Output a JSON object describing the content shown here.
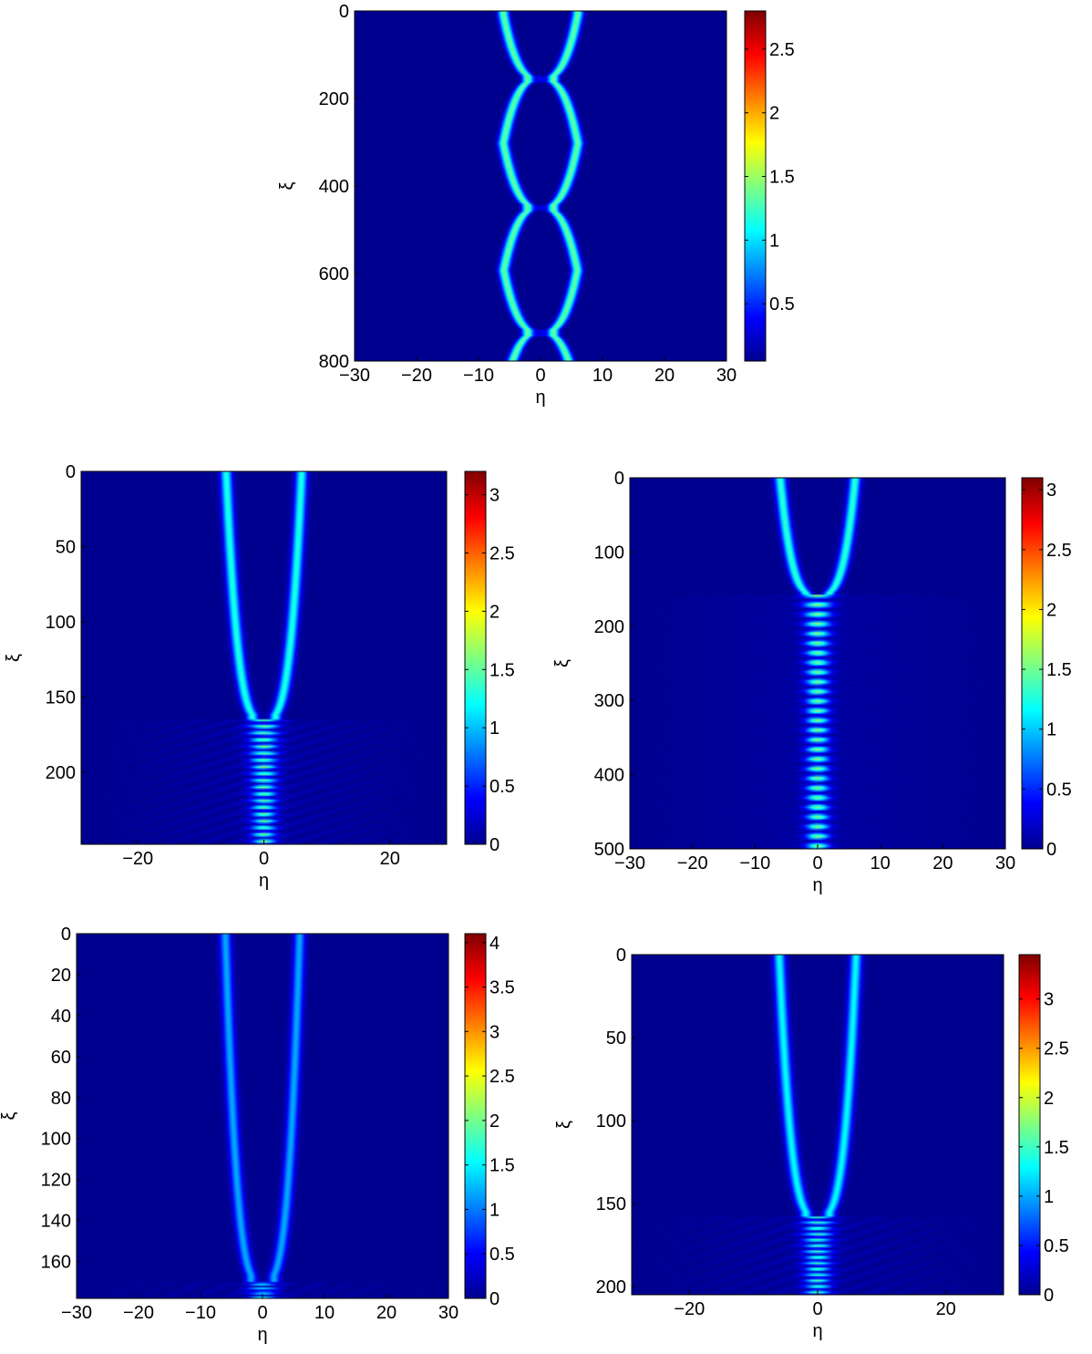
{
  "colormap": [
    "#00008f",
    "#0000ff",
    "#0080ff",
    "#00ffff",
    "#80ff80",
    "#ffff00",
    "#ff8000",
    "#ff0000",
    "#800000"
  ],
  "chart_data": [
    {
      "type": "heatmap",
      "xlabel": "η",
      "ylabel": "ξ",
      "xlim": [
        -30,
        30
      ],
      "ylim": [
        0,
        800
      ],
      "xticks": [
        "−30",
        "−20",
        "−10",
        "0",
        "10",
        "20",
        "30"
      ],
      "xtick_values": [
        -30,
        -20,
        -10,
        0,
        10,
        20,
        30
      ],
      "yticks": [
        "0",
        "200",
        "400",
        "600",
        "800"
      ],
      "ytick_values": [
        0,
        200,
        400,
        600,
        800
      ],
      "colorbar": {
        "range": [
          0.05,
          2.8
        ],
        "ticks": [
          "0.5",
          "1",
          "1.5",
          "2",
          "2.5"
        ],
        "tick_values": [
          0.5,
          1,
          1.5,
          2,
          2.5
        ]
      },
      "pattern": "breathing",
      "peak_amplitude": 1.35,
      "max_separation": 6,
      "beam_width": 0.9,
      "collision_points": [
        155,
        450,
        735
      ]
    },
    {
      "type": "heatmap",
      "xlabel": "η",
      "ylabel": "ξ",
      "xlim": [
        -29,
        29
      ],
      "ylim": [
        0,
        248
      ],
      "xticks": [
        "−20",
        "0",
        "20"
      ],
      "xtick_values": [
        -20,
        0,
        20
      ],
      "yticks": [
        "0",
        "50",
        "100",
        "150",
        "200"
      ],
      "ytick_values": [
        0,
        50,
        100,
        150,
        200
      ],
      "colorbar": {
        "range": [
          0,
          3.2
        ],
        "ticks": [
          "0",
          "0.5",
          "1",
          "1.5",
          "2",
          "2.5",
          "3"
        ],
        "tick_values": [
          0,
          0.5,
          1,
          1.5,
          2,
          2.5,
          3
        ]
      },
      "pattern": "collapse",
      "peak_amplitude": 1.3,
      "max_separation": 6,
      "beam_width": 0.9,
      "collapse_point": 165,
      "fringe_period": 4.5
    },
    {
      "type": "heatmap",
      "xlabel": "η",
      "ylabel": "ξ",
      "xlim": [
        -30,
        30
      ],
      "ylim": [
        0,
        500
      ],
      "xticks": [
        "−30",
        "−20",
        "−10",
        "0",
        "10",
        "20",
        "30"
      ],
      "xtick_values": [
        -30,
        -20,
        -10,
        0,
        10,
        20,
        30
      ],
      "yticks": [
        "0",
        "100",
        "200",
        "300",
        "400",
        "500"
      ],
      "ytick_values": [
        0,
        100,
        200,
        300,
        400,
        500
      ],
      "colorbar": {
        "range": [
          0,
          3.1
        ],
        "ticks": [
          "0",
          "0.5",
          "1",
          "1.5",
          "2",
          "2.5",
          "3"
        ],
        "tick_values": [
          0,
          0.5,
          1,
          1.5,
          2,
          2.5,
          3
        ]
      },
      "pattern": "collapse",
      "peak_amplitude": 1.3,
      "max_separation": 6,
      "beam_width": 0.9,
      "collapse_point": 158,
      "fringe_period": 13
    },
    {
      "type": "heatmap",
      "xlabel": "η",
      "ylabel": "ξ",
      "xlim": [
        -30,
        30
      ],
      "ylim": [
        0,
        178
      ],
      "xticks": [
        "−30",
        "−20",
        "−10",
        "0",
        "10",
        "20",
        "30"
      ],
      "xtick_values": [
        -30,
        -20,
        -10,
        0,
        10,
        20,
        30
      ],
      "yticks": [
        "0",
        "20",
        "40",
        "60",
        "80",
        "100",
        "120",
        "140",
        "160"
      ],
      "ytick_values": [
        0,
        20,
        40,
        60,
        80,
        100,
        120,
        140,
        160
      ],
      "colorbar": {
        "range": [
          0,
          4.1
        ],
        "ticks": [
          "0",
          "0.5",
          "1",
          "1.5",
          "2",
          "2.5",
          "3",
          "3.5",
          "4"
        ],
        "tick_values": [
          0,
          0.5,
          1,
          1.5,
          2,
          2.5,
          3,
          3.5,
          4
        ]
      },
      "pattern": "collapse",
      "peak_amplitude": 1.2,
      "max_separation": 6,
      "beam_width": 0.9,
      "collapse_point": 170,
      "fringe_period": 1.5
    },
    {
      "type": "heatmap",
      "xlabel": "η",
      "ylabel": "ξ",
      "xlim": [
        -29,
        29
      ],
      "ylim": [
        0,
        205
      ],
      "xticks": [
        "−20",
        "0",
        "20"
      ],
      "xtick_values": [
        -20,
        0,
        20
      ],
      "yticks": [
        "0",
        "50",
        "100",
        "150",
        "200"
      ],
      "ytick_values": [
        0,
        50,
        100,
        150,
        200
      ],
      "colorbar": {
        "range": [
          0,
          3.45
        ],
        "ticks": [
          "0",
          "0.5",
          "1",
          "1.5",
          "2",
          "2.5",
          "3"
        ],
        "tick_values": [
          0,
          0.5,
          1,
          1.5,
          2,
          2.5,
          3
        ]
      },
      "pattern": "collapse",
      "peak_amplitude": 1.3,
      "max_separation": 6,
      "beam_width": 0.9,
      "collapse_point": 158,
      "fringe_period": 3.5
    }
  ]
}
